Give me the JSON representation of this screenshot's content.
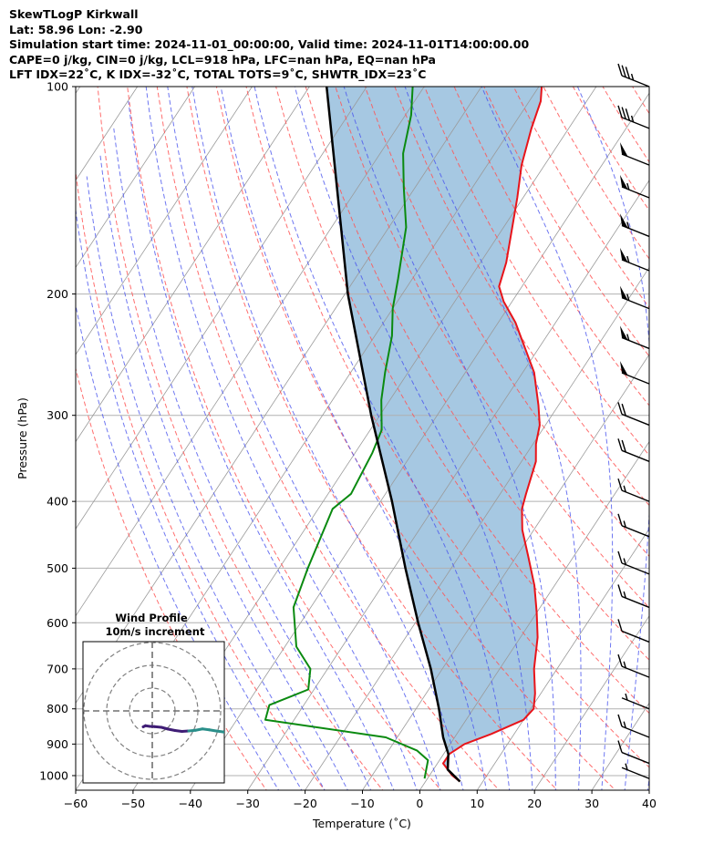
{
  "header": {
    "line1": "SkewTLogP Kirkwall",
    "line2": "Lat: 58.96   Lon: -2.90",
    "line3": "Simulation start time: 2024-11-01_00:00:00, Valid time: 2024-11-01T14:00:00.00",
    "line4": "CAPE=0 j/kg, CIN=0 j/kg, LCL=918 hPa, LFC=nan hPa, EQ=nan hPa",
    "line5": "LFT IDX=22˚C, K IDX=-32˚C, TOTAL TOTS=9˚C, SHWTR_IDX=23˚C"
  },
  "colors": {
    "temperature": "#e8141a",
    "dewpoint": "#0a8a10",
    "parcel": "#000000",
    "fill": "#a6c8e2",
    "dry_adiabat": "#ff5555",
    "moist_adiabat": "#4a55ee",
    "isotherm": "#9a9a9a",
    "hodo_low": "#3f1d75",
    "hodo_high": "#2a8f8a"
  },
  "chart_data": {
    "type": "line",
    "subtype": "skew-t log-p",
    "xlabel": "Temperature (˚C)",
    "ylabel": "Pressure (hPa)",
    "xlim": [
      -60,
      40
    ],
    "ylim": [
      1050,
      100
    ],
    "y_scale": "log",
    "grid": true,
    "x_ticks": [
      "−60",
      "−50",
      "−40",
      "−30",
      "−20",
      "−10",
      "0",
      "10",
      "20",
      "30",
      "40"
    ],
    "y_ticks": [
      "100",
      "200",
      "300",
      "400",
      "500",
      "600",
      "700",
      "800",
      "900",
      "1000"
    ],
    "series": [
      {
        "name": "temperature",
        "points": [
          [
            6.0,
            1020
          ],
          [
            4.0,
            1000
          ],
          [
            1.0,
            960
          ],
          [
            1.0,
            930
          ],
          [
            2.5,
            900
          ],
          [
            6.0,
            870
          ],
          [
            10.0,
            830
          ],
          [
            10.5,
            800
          ],
          [
            9.0,
            760
          ],
          [
            6.0,
            700
          ],
          [
            3.0,
            630
          ],
          [
            0.0,
            580
          ],
          [
            -3.5,
            530
          ],
          [
            -8.0,
            480
          ],
          [
            -12.0,
            440
          ],
          [
            -14.5,
            410
          ],
          [
            -15.5,
            390
          ],
          [
            -17.5,
            350
          ],
          [
            -19.5,
            330
          ],
          [
            -21.0,
            310
          ],
          [
            -23.5,
            290
          ],
          [
            -28.0,
            260
          ],
          [
            -37.0,
            220
          ],
          [
            -41.5,
            205
          ],
          [
            -44.0,
            195
          ],
          [
            -45.5,
            180
          ],
          [
            -48.5,
            160
          ],
          [
            -51.0,
            145
          ],
          [
            -54.0,
            130
          ],
          [
            -56.5,
            115
          ],
          [
            -58.0,
            105
          ],
          [
            -59.5,
            100
          ]
        ]
      },
      {
        "name": "dewpoint",
        "points": [
          [
            -0.5,
            1010
          ],
          [
            -1.0,
            990
          ],
          [
            -2.0,
            950
          ],
          [
            -5.0,
            920
          ],
          [
            -12.0,
            880
          ],
          [
            -35.0,
            830
          ],
          [
            -36.0,
            790
          ],
          [
            -31.0,
            750
          ],
          [
            -33.0,
            700
          ],
          [
            -38.0,
            650
          ],
          [
            -43.0,
            570
          ],
          [
            -45.0,
            500
          ],
          [
            -47.5,
            410
          ],
          [
            -46.0,
            390
          ],
          [
            -47.0,
            340
          ],
          [
            -48.0,
            315
          ],
          [
            -51.5,
            285
          ],
          [
            -54.0,
            260
          ],
          [
            -57.0,
            230
          ],
          [
            -60.0,
            210
          ],
          [
            -62.5,
            190
          ],
          [
            -67.0,
            160
          ],
          [
            -72.0,
            140
          ],
          [
            -76.0,
            125
          ],
          [
            -79.0,
            110
          ],
          [
            -82.0,
            100
          ]
        ]
      },
      {
        "name": "parcel",
        "points": [
          [
            6.0,
            1020
          ],
          [
            2.5,
            980
          ],
          [
            0.8,
            930
          ],
          [
            -2.0,
            880
          ],
          [
            -6.0,
            800
          ],
          [
            -12.0,
            700
          ],
          [
            -19.5,
            600
          ],
          [
            -28.0,
            500
          ],
          [
            -38.0,
            400
          ],
          [
            -51.5,
            300
          ],
          [
            -69.5,
            200
          ],
          [
            -97.0,
            100
          ]
        ]
      }
    ],
    "wind_barbs": [
      {
        "p": 100,
        "flags": 0,
        "full": 3,
        "half": 1
      },
      {
        "p": 115,
        "flags": 0,
        "full": 3,
        "half": 1
      },
      {
        "p": 130,
        "flags": 1,
        "full": 0,
        "half": 0
      },
      {
        "p": 145,
        "flags": 1,
        "full": 0,
        "half": 1
      },
      {
        "p": 165,
        "flags": 1,
        "full": 0,
        "half": 1
      },
      {
        "p": 185,
        "flags": 1,
        "full": 0,
        "half": 1
      },
      {
        "p": 210,
        "flags": 1,
        "full": 0,
        "half": 1
      },
      {
        "p": 240,
        "flags": 1,
        "full": 0,
        "half": 1
      },
      {
        "p": 270,
        "flags": 1,
        "full": 0,
        "half": 0
      },
      {
        "p": 310,
        "flags": 0,
        "full": 2,
        "half": 0
      },
      {
        "p": 350,
        "flags": 0,
        "full": 2,
        "half": 0
      },
      {
        "p": 400,
        "flags": 0,
        "full": 1,
        "half": 1
      },
      {
        "p": 450,
        "flags": 0,
        "full": 1,
        "half": 1
      },
      {
        "p": 510,
        "flags": 0,
        "full": 1,
        "half": 1
      },
      {
        "p": 570,
        "flags": 0,
        "full": 1,
        "half": 1
      },
      {
        "p": 640,
        "flags": 0,
        "full": 1,
        "half": 0
      },
      {
        "p": 720,
        "flags": 0,
        "full": 1,
        "half": 1
      },
      {
        "p": 800,
        "flags": 0,
        "full": 0,
        "half": 1
      },
      {
        "p": 880,
        "flags": 0,
        "full": 1,
        "half": 1
      },
      {
        "p": 960,
        "flags": 0,
        "full": 1,
        "half": 0
      },
      {
        "p": 1010,
        "flags": 0,
        "full": 0,
        "half": 1
      }
    ],
    "inset": {
      "title": "Wind Profile",
      "subtitle": "10m/s increment",
      "rings_ms": [
        10,
        20,
        30
      ],
      "trace_u_ms": [
        -4,
        -3,
        -1,
        1,
        4,
        7,
        10,
        13,
        16,
        19,
        22,
        25,
        28,
        31,
        34
      ],
      "trace_v_ms": [
        -7,
        -6.5,
        -6.8,
        -6.9,
        -7.2,
        -8.0,
        -8.6,
        -9.0,
        -8.8,
        -8.5,
        -7.9,
        -8.3,
        -8.8,
        -9.2,
        -10
      ]
    }
  }
}
